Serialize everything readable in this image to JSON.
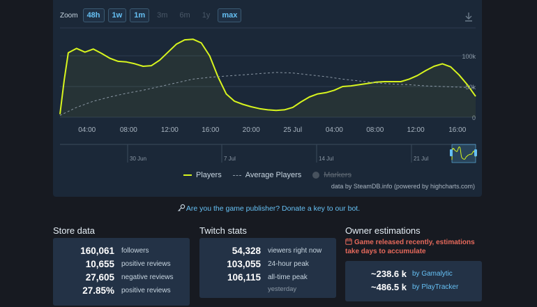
{
  "zoom": {
    "label": "Zoom",
    "buttons": [
      {
        "label": "48h",
        "enabled": true
      },
      {
        "label": "1w",
        "enabled": true
      },
      {
        "label": "1m",
        "enabled": true
      },
      {
        "label": "3m",
        "enabled": false
      },
      {
        "label": "6m",
        "enabled": false
      },
      {
        "label": "1y",
        "enabled": false
      },
      {
        "label": "max",
        "enabled": true
      }
    ]
  },
  "chart_data": {
    "type": "line",
    "x_tick_labels": [
      "04:00",
      "08:00",
      "12:00",
      "16:00",
      "20:00",
      "25 Jul",
      "04:00",
      "08:00",
      "12:00",
      "16:00"
    ],
    "y_tick_labels": [
      "100k",
      "50k",
      "0"
    ],
    "ylim": [
      0,
      100000
    ],
    "navigator_labels": [
      "30 Jun",
      "7 Jul",
      "14 Jul",
      "21 Jul"
    ],
    "series": [
      {
        "name": "Players",
        "color": "#d8f51e",
        "points": [
          [
            0,
            5000
          ],
          [
            0.5,
            60000
          ],
          [
            1,
            105000
          ],
          [
            2,
            112000
          ],
          [
            3,
            106000
          ],
          [
            4,
            111000
          ],
          [
            5,
            104000
          ],
          [
            6,
            96000
          ],
          [
            7,
            91000
          ],
          [
            8,
            90000
          ],
          [
            9,
            87000
          ],
          [
            10,
            83000
          ],
          [
            11,
            84000
          ],
          [
            12,
            93000
          ],
          [
            13,
            106000
          ],
          [
            14,
            119000
          ],
          [
            15,
            126000
          ],
          [
            16,
            127000
          ],
          [
            17,
            121000
          ],
          [
            18,
            100000
          ],
          [
            19,
            66000
          ],
          [
            20,
            38000
          ],
          [
            21,
            26000
          ],
          [
            22,
            21000
          ],
          [
            23,
            17000
          ],
          [
            24,
            14000
          ],
          [
            25,
            12000
          ],
          [
            26,
            11000
          ],
          [
            27,
            12000
          ],
          [
            28,
            16000
          ],
          [
            29,
            25000
          ],
          [
            30,
            33000
          ],
          [
            31,
            38000
          ],
          [
            32,
            40000
          ],
          [
            33,
            44000
          ],
          [
            34,
            50000
          ],
          [
            35,
            51000
          ],
          [
            36,
            53000
          ],
          [
            37,
            55000
          ],
          [
            38,
            57000
          ],
          [
            39,
            58000
          ],
          [
            40,
            58000
          ],
          [
            41,
            58000
          ],
          [
            42,
            62000
          ],
          [
            43,
            68000
          ],
          [
            44,
            76000
          ],
          [
            45,
            83000
          ],
          [
            46,
            87000
          ],
          [
            47,
            82000
          ],
          [
            48,
            69000
          ],
          [
            49,
            53000
          ],
          [
            50,
            34000
          ]
        ]
      },
      {
        "name": "Average Players",
        "color": "#8b98a5",
        "points": [
          [
            0,
            3000
          ],
          [
            2,
            16000
          ],
          [
            4,
            26000
          ],
          [
            6,
            33000
          ],
          [
            8,
            39000
          ],
          [
            10,
            44000
          ],
          [
            12,
            50000
          ],
          [
            14,
            56000
          ],
          [
            16,
            62000
          ],
          [
            18,
            65000
          ],
          [
            20,
            67000
          ],
          [
            22,
            69000
          ],
          [
            24,
            71000
          ],
          [
            26,
            73000
          ],
          [
            28,
            72000
          ],
          [
            30,
            69000
          ],
          [
            32,
            66000
          ],
          [
            34,
            62000
          ],
          [
            36,
            59000
          ],
          [
            38,
            56000
          ],
          [
            40,
            54000
          ],
          [
            42,
            53000
          ],
          [
            44,
            51000
          ],
          [
            46,
            50000
          ],
          [
            48,
            49000
          ],
          [
            50,
            48000
          ]
        ]
      }
    ],
    "legend": [
      {
        "name": "Players",
        "style": "solid",
        "color": "#d8f51e"
      },
      {
        "name": "Average Players",
        "style": "dashed",
        "color": "#8b98a5"
      },
      {
        "name": "Markers",
        "style": "disabled",
        "color": "#47525e"
      }
    ]
  },
  "chart_credit": "data by SteamDB.info (powered by highcharts.com)",
  "publisher_link": "Are you the game publisher? Donate a key to our bot.",
  "store_data": {
    "title": "Store data",
    "rows": [
      {
        "value": "160,061",
        "label": "followers"
      },
      {
        "value": "10,655",
        "label": "positive reviews"
      },
      {
        "value": "27,605",
        "label": "negative reviews"
      },
      {
        "value": "27.85%",
        "label": "positive reviews"
      }
    ]
  },
  "twitch_stats": {
    "title": "Twitch stats",
    "rows": [
      {
        "value": "54,328",
        "label": "viewers right now"
      },
      {
        "value": "103,055",
        "label": "24-hour peak"
      },
      {
        "value": "106,115",
        "label": "all-time peak"
      }
    ],
    "sub_label": "yesterday"
  },
  "owner_estimations": {
    "title": "Owner estimations",
    "warning": "Game released recently, estimations take days to accumulate",
    "rows": [
      {
        "value": "~238.6 k",
        "source": "by Gamalytic"
      },
      {
        "value": "~486.5 k",
        "source": "by PlayTracker"
      }
    ]
  },
  "colors": {
    "accent": "#66c0f4",
    "players_line": "#d8f51e",
    "warning": "#e6695b"
  },
  "icons": {
    "download": "download-icon",
    "key": "key-icon",
    "calendar": "calendar-icon"
  }
}
